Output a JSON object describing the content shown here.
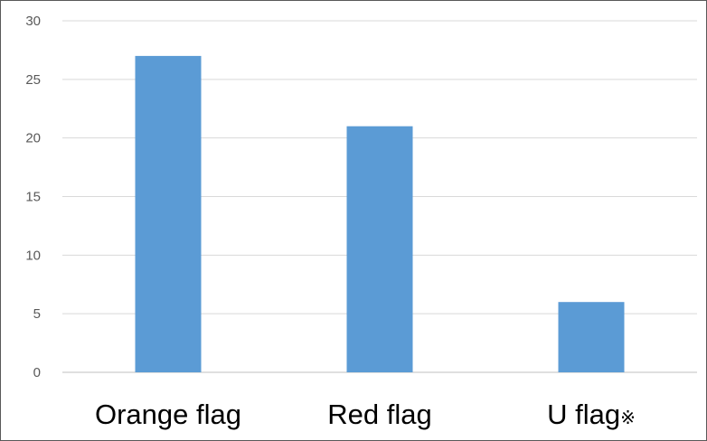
{
  "chart_data": {
    "type": "bar",
    "title": "",
    "xlabel": "",
    "ylabel": "",
    "categories": [
      "Orange flag",
      "Red flag",
      "U flag※"
    ],
    "values": [
      27,
      21,
      6
    ],
    "ylim": [
      0,
      30
    ],
    "ytick_step": 5,
    "grid": true,
    "legend": "none",
    "colors": {
      "bar": "#5b9bd5",
      "gridline": "#d9d9d9",
      "axis": "#bfbfbf",
      "tick_label": "#595959",
      "category_label": "#000000"
    }
  }
}
